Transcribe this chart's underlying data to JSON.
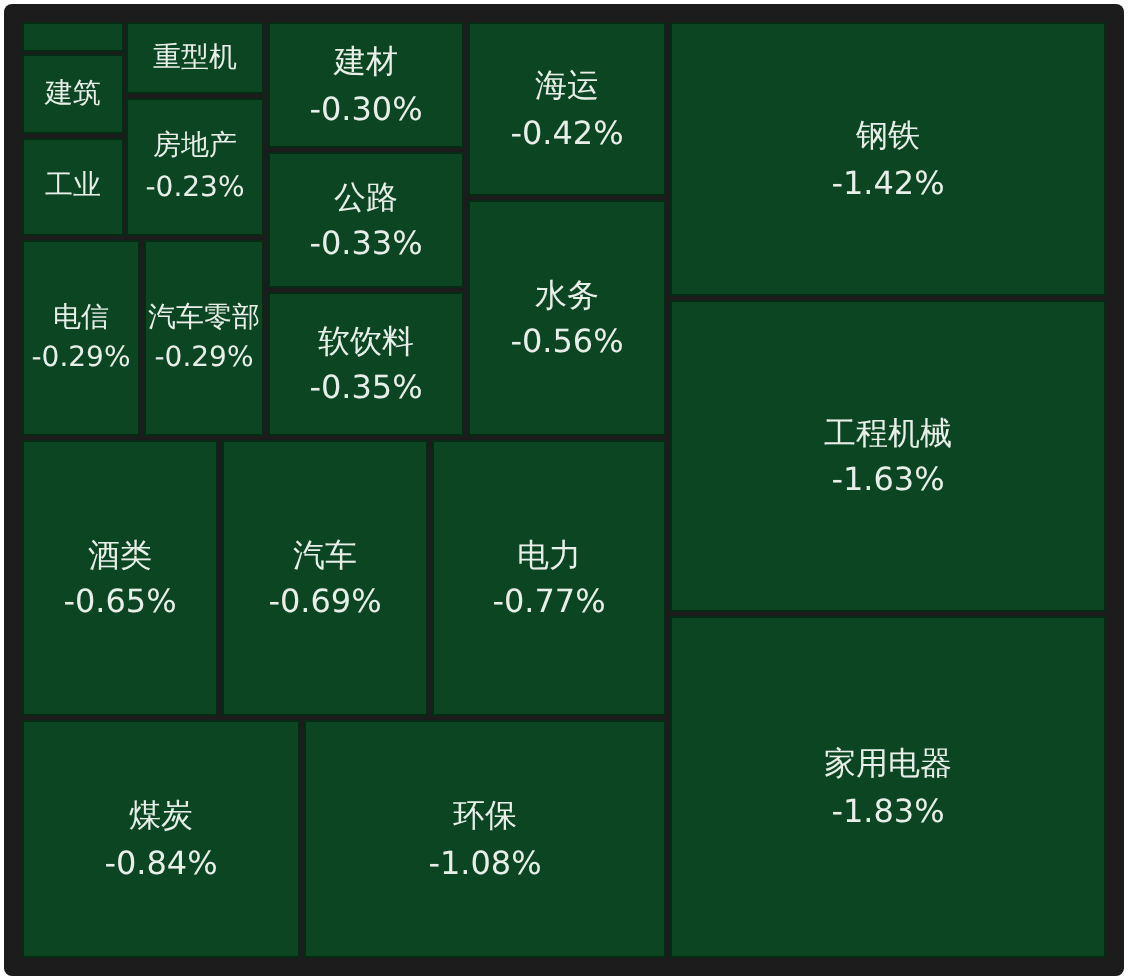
{
  "chart_data": {
    "type": "other",
    "categories": [
      null,
      "建筑",
      "工业",
      "重型机",
      "房地产",
      "电信",
      "汽车零部",
      "建材",
      "公路",
      "软饮料",
      "海运",
      "水务",
      "钢铁",
      "工程机械",
      "家用电器",
      "酒类",
      "汽车",
      "电力",
      "煤炭",
      "环保"
    ],
    "values": [
      null,
      null,
      null,
      null,
      -0.23,
      -0.29,
      -0.29,
      -0.3,
      -0.33,
      -0.35,
      -0.42,
      -0.56,
      -1.42,
      -1.63,
      -1.83,
      -0.65,
      -0.69,
      -0.77,
      -0.84,
      -1.08
    ],
    "value_labels": [
      null,
      null,
      null,
      null,
      "-0.23%",
      "-0.29%",
      "-0.29%",
      "-0.30%",
      "-0.33%",
      "-0.35%",
      "-0.42%",
      "-0.56%",
      "-1.42%",
      "-1.63%",
      "-1.83%",
      "-0.65%",
      "-0.69%",
      "-0.77%",
      "-0.84%",
      "-1.08%"
    ],
    "color": "#0c4522"
  }
}
